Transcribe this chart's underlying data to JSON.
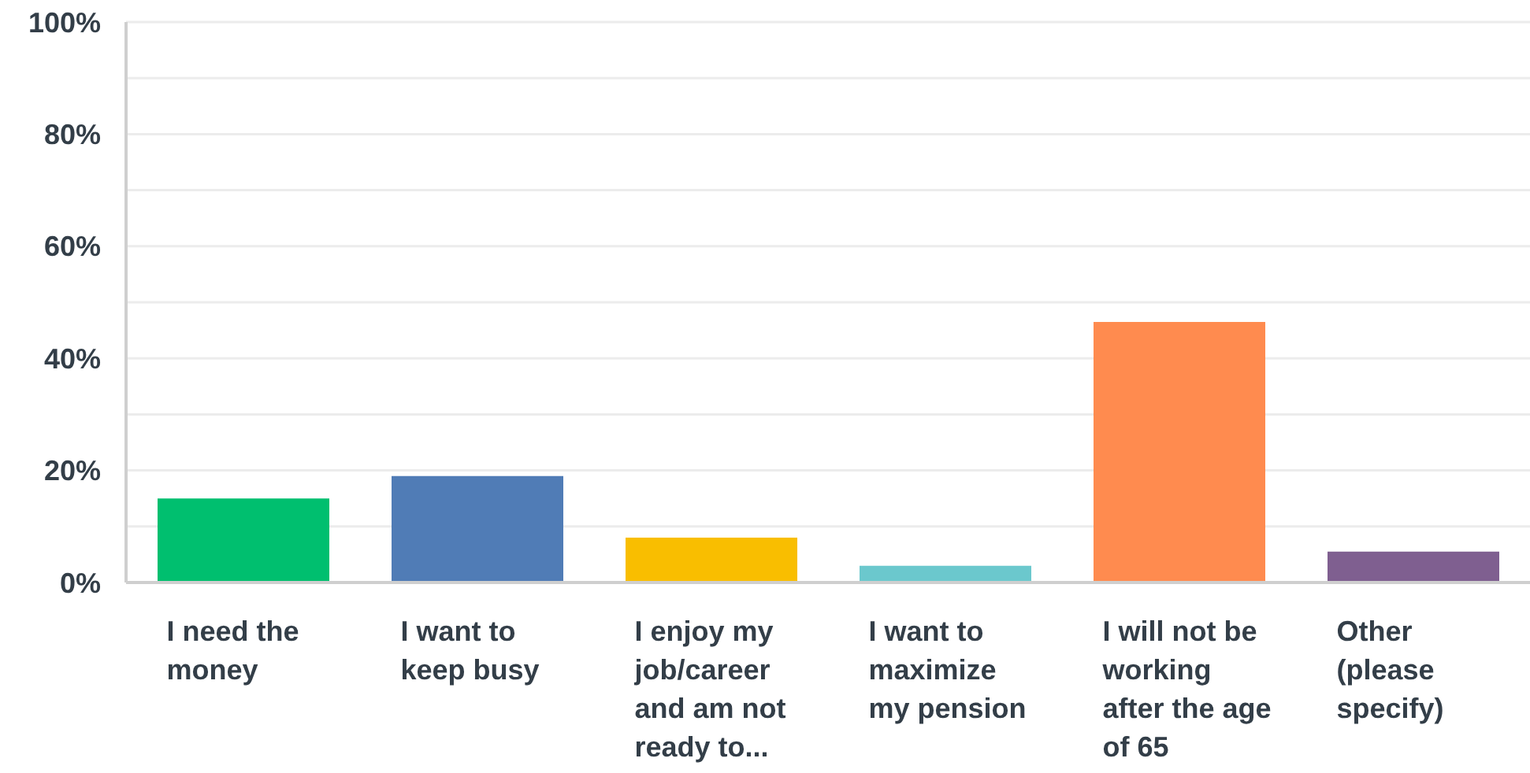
{
  "chart_data": {
    "type": "bar",
    "categories": [
      "I need the money",
      "I want to keep busy",
      "I enjoy my job/career and am not ready to...",
      "I want to maximize my pension",
      "I will not be working after the age of 65",
      "Other (please specify)"
    ],
    "values": [
      15,
      19,
      8,
      3,
      46.5,
      5.5
    ],
    "colors": [
      "#00bf6f",
      "#507cb6",
      "#f9be00",
      "#6bc8cd",
      "#ff8b4f",
      "#7f5f90"
    ],
    "ylim": [
      0,
      100
    ],
    "yticks": [
      {
        "value": 0,
        "label": "0%"
      },
      {
        "value": 10,
        "label": null
      },
      {
        "value": 20,
        "label": "20%"
      },
      {
        "value": 30,
        "label": null
      },
      {
        "value": 40,
        "label": "40%"
      },
      {
        "value": 50,
        "label": null
      },
      {
        "value": 60,
        "label": "60%"
      },
      {
        "value": 70,
        "label": null
      },
      {
        "value": 80,
        "label": "80%"
      },
      {
        "value": 90,
        "label": null
      },
      {
        "value": 100,
        "label": "100%"
      }
    ],
    "grid": "y"
  }
}
